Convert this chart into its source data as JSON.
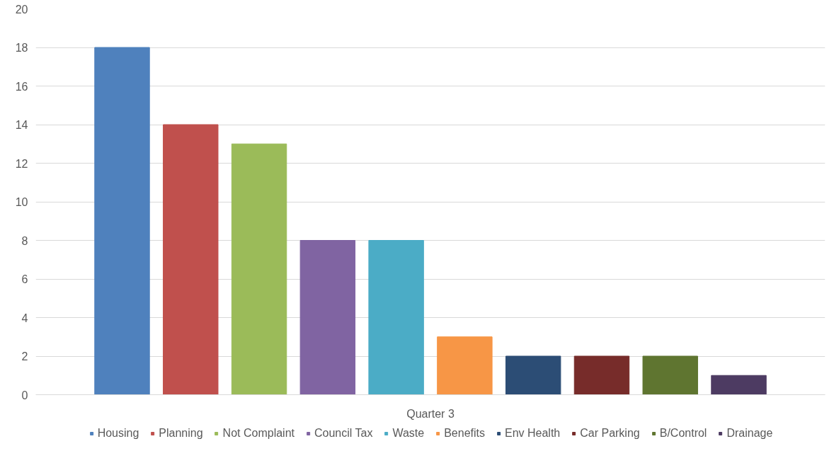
{
  "chart_data": {
    "type": "bar",
    "categories": [
      "Quarter 3"
    ],
    "series": [
      {
        "name": "Housing",
        "color": "#4f81bd",
        "values": [
          18
        ]
      },
      {
        "name": "Planning",
        "color": "#c0504d",
        "values": [
          14
        ]
      },
      {
        "name": "Not Complaint",
        "color": "#9bbb59",
        "values": [
          13
        ]
      },
      {
        "name": "Council Tax",
        "color": "#8064a2",
        "values": [
          8
        ]
      },
      {
        "name": "Waste",
        "color": "#4bacc6",
        "values": [
          8
        ]
      },
      {
        "name": "Benefits",
        "color": "#f79646",
        "values": [
          3
        ]
      },
      {
        "name": "Env Health",
        "color": "#2c4d75",
        "values": [
          2
        ]
      },
      {
        "name": "Car Parking",
        "color": "#772c2a",
        "values": [
          2
        ]
      },
      {
        "name": "B/Control",
        "color": "#5f7530",
        "values": [
          2
        ]
      },
      {
        "name": "Drainage",
        "color": "#4d3b62",
        "values": [
          1
        ]
      }
    ],
    "ylim": [
      0,
      20
    ],
    "yticks": [
      0,
      2,
      4,
      6,
      8,
      10,
      12,
      14,
      16,
      18,
      20
    ],
    "grid": "y",
    "legend": "bottom"
  }
}
